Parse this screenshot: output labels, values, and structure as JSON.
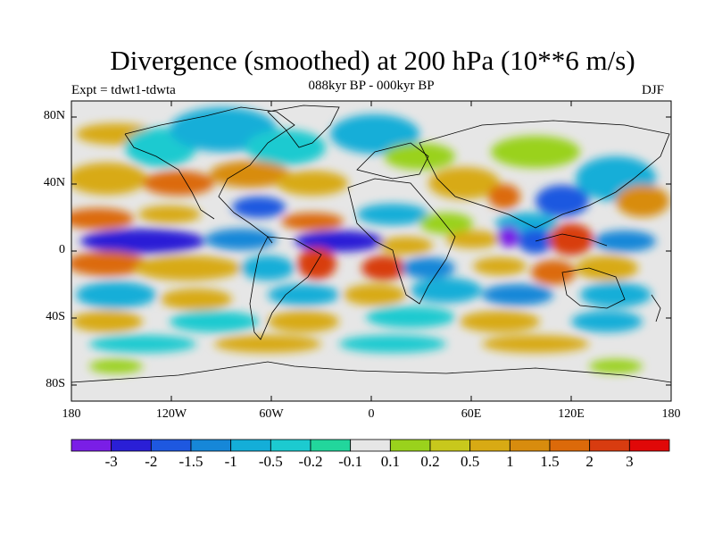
{
  "title": "Divergence (smoothed) at 200 hPa (10**6 m/s)",
  "experiment": "Expt = tdwt1-tdwta",
  "period": "088kyr BP - 000kyr BP",
  "season": "DJF",
  "y_ticks": [
    "80N",
    "40N",
    "0",
    "40S",
    "80S"
  ],
  "x_ticks": [
    "180",
    "120W",
    "60W",
    "0",
    "60E",
    "120E",
    "180"
  ],
  "colorbar": {
    "labels": [
      "-3",
      "-2",
      "-1.5",
      "-1",
      "-0.5",
      "-0.2",
      "-0.1",
      "0.1",
      "0.2",
      "0.5",
      "1",
      "1.5",
      "2",
      "3"
    ],
    "colors": [
      "#7a1ee6",
      "#2a1fd6",
      "#1e58e0",
      "#1687d8",
      "#14aed8",
      "#1ccad0",
      "#22d69c",
      "#e6e6e6",
      "#9ad21c",
      "#c8c81c",
      "#d8aa14",
      "#d88c0e",
      "#dc6a0a",
      "#d83c10",
      "#e00808"
    ]
  },
  "colors": {
    "background": "#ffffff",
    "missing": "#e6e6e6",
    "coast": "#000000"
  }
}
